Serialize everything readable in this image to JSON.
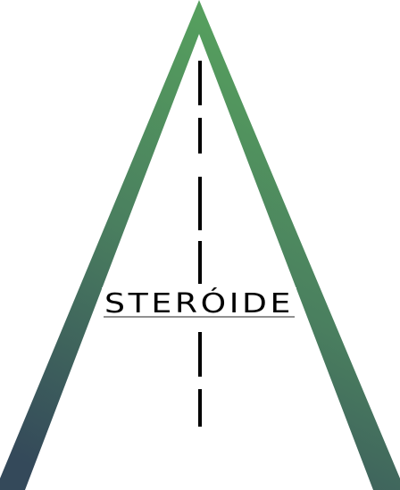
{
  "logo": {
    "wordmark": "STERÓIDE",
    "colors": {
      "gradient_top": "#57a35e",
      "gradient_mid": "#4a7f5f",
      "gradient_bottom": "#34495a",
      "road_line": "#000000",
      "wordmark": "#000000",
      "underline": "#222222",
      "background": "#ffffff"
    }
  }
}
